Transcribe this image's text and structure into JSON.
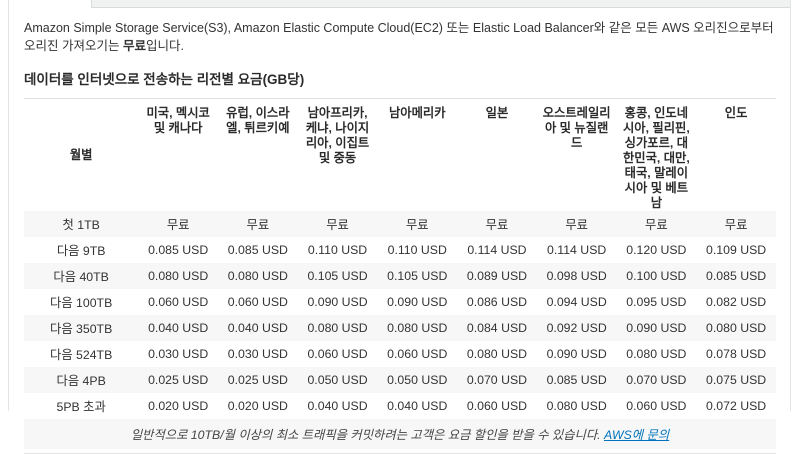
{
  "page": {
    "intro_before": "Amazon Simple Storage Service(S3), Amazon Elastic Compute Cloud(EC2) 또는 Elastic Load Balancer와 같은 모든 AWS 오리진으로부터 오리진 가져오기는 ",
    "intro_bold": "무료",
    "intro_after": "입니다.",
    "section_title": "데이터를 인터넷으로 전송하는 리전별 요금(GB당)"
  },
  "table": {
    "columns": [
      "월별",
      "미국, 멕시코 및 캐나다",
      "유럽, 이스라엘, 튀르키예",
      "남아프리카, 케냐, 나이지리아, 이집트 및 중동",
      "남아메리카",
      "일본",
      "오스트레일리아 및 뉴질랜드",
      "홍콩, 인도네시아, 필리핀, 싱가포르, 대한민국, 대만, 태국, 말레이시아 및 베트남",
      "인도"
    ],
    "rows": [
      {
        "tier": "첫 1TB",
        "values": [
          "무료",
          "무료",
          "무료",
          "무료",
          "무료",
          "무료",
          "무료",
          "무료"
        ]
      },
      {
        "tier": "다음 9TB",
        "values": [
          "0.085 USD",
          "0.085 USD",
          "0.110 USD",
          "0.110 USD",
          "0.114 USD",
          "0.114 USD",
          "0.120 USD",
          "0.109 USD"
        ]
      },
      {
        "tier": "다음 40TB",
        "values": [
          "0.080 USD",
          "0.080 USD",
          "0.105 USD",
          "0.105 USD",
          "0.089 USD",
          "0.098 USD",
          "0.100 USD",
          "0.085 USD"
        ]
      },
      {
        "tier": "다음 100TB",
        "values": [
          "0.060 USD",
          "0.060 USD",
          "0.090 USD",
          "0.090 USD",
          "0.086 USD",
          "0.094 USD",
          "0.095 USD",
          "0.082 USD"
        ]
      },
      {
        "tier": "다음 350TB",
        "values": [
          "0.040 USD",
          "0.040 USD",
          "0.080 USD",
          "0.080 USD",
          "0.084 USD",
          "0.092 USD",
          "0.090 USD",
          "0.080 USD"
        ]
      },
      {
        "tier": "다음 524TB",
        "values": [
          "0.030 USD",
          "0.030 USD",
          "0.060 USD",
          "0.060 USD",
          "0.080 USD",
          "0.090 USD",
          "0.080 USD",
          "0.078 USD"
        ]
      },
      {
        "tier": "다음 4PB",
        "values": [
          "0.025 USD",
          "0.025 USD",
          "0.050 USD",
          "0.050 USD",
          "0.070 USD",
          "0.085 USD",
          "0.070 USD",
          "0.075 USD"
        ]
      },
      {
        "tier": "5PB 초과",
        "values": [
          "0.020 USD",
          "0.020 USD",
          "0.040 USD",
          "0.040 USD",
          "0.060 USD",
          "0.080 USD",
          "0.060 USD",
          "0.072 USD"
        ]
      }
    ],
    "footnote_text": "일반적으로 10TB/월 이상의 최소 트래픽을 커밋하려는 고객은 요금 할인을 받을 수 있습니다. ",
    "footnote_link": "AWS에 문의"
  },
  "colors": {
    "link": "#0073bb",
    "stripe": "#f7f7f7",
    "border": "#e4e4e4",
    "tab_strip": "#f0f1f1"
  }
}
